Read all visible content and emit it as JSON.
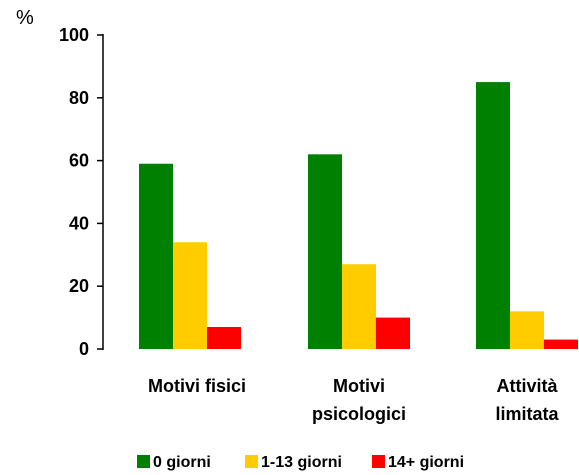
{
  "chart_data": {
    "type": "bar",
    "unit_label": "%",
    "categories": [
      "Motivi fisici",
      "Motivi psicologici",
      "Attività limitata"
    ],
    "category_lines": [
      [
        "Motivi fisici"
      ],
      [
        "Motivi",
        "psicologici"
      ],
      [
        "Attività",
        "limitata"
      ]
    ],
    "series": [
      {
        "name": "0 giorni",
        "color": "#008000",
        "values": [
          59,
          62,
          85
        ]
      },
      {
        "name": "1-13 giorni",
        "color": "#FFCC00",
        "values": [
          34,
          27,
          12
        ]
      },
      {
        "name": "14+ giorni",
        "color": "#FF0000",
        "values": [
          7,
          10,
          3
        ]
      }
    ],
    "yticks": [
      0,
      20,
      40,
      60,
      80,
      100
    ],
    "ylim": [
      0,
      100
    ],
    "grid": false,
    "legend_position": "bottom"
  }
}
